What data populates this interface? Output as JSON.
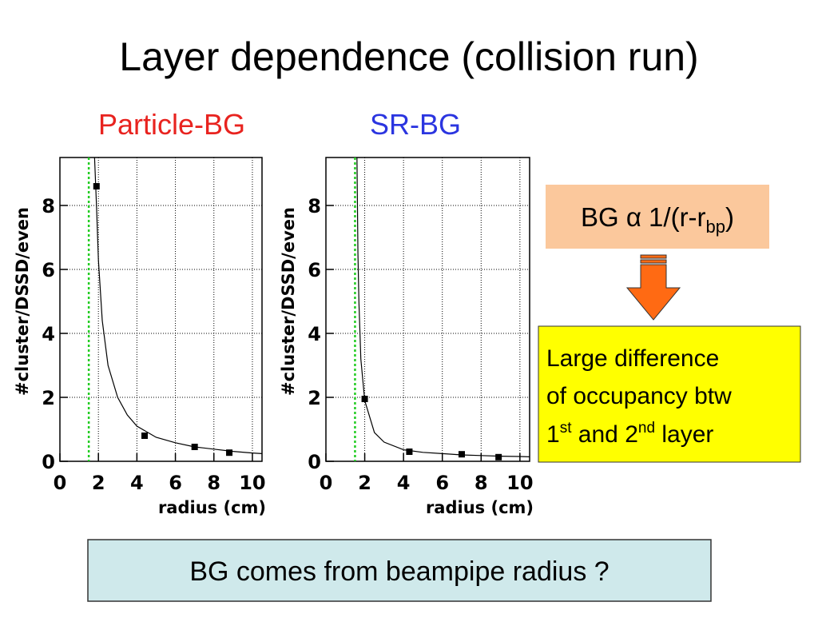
{
  "slide": {
    "title": "Layer dependence (collision run)",
    "formula": {
      "parts": [
        "BG ",
        "α",
        " 1/(r-r",
        "bp",
        ")"
      ]
    },
    "note": {
      "lines": [
        [
          "Large difference"
        ],
        [
          "of occupancy btw"
        ],
        [
          "1",
          "st",
          " and 2",
          "nd",
          " layer"
        ]
      ]
    },
    "bottom": "BG comes from beampipe radius ?"
  },
  "chart_data": [
    {
      "type": "scatter",
      "title": "Particle-BG",
      "title_color": "#e8231f",
      "x_label": "radius (cm)",
      "y_label": "#cluster/DSSD/even",
      "xlim": [
        0,
        10.5
      ],
      "ylim": [
        0,
        9.5
      ],
      "xticks": [
        0,
        2,
        4,
        6,
        8,
        10
      ],
      "yticks": [
        0,
        2,
        4,
        6,
        8
      ],
      "grid": true,
      "vline": 1.5,
      "vline_color": "#22cc22",
      "points": {
        "x": [
          1.9,
          4.4,
          7.0,
          8.8
        ],
        "values": [
          8.6,
          0.8,
          0.45,
          0.27
        ],
        "color": "#000000"
      },
      "curve": {
        "x": [
          1.8,
          1.9,
          2.0,
          2.2,
          2.5,
          3.0,
          3.5,
          4.0,
          5.0,
          6.0,
          7.0,
          8.0,
          9.0,
          10.0,
          10.5
        ],
        "values": [
          9.5,
          8.0,
          6.3,
          4.4,
          3.0,
          2.0,
          1.45,
          1.1,
          0.75,
          0.58,
          0.45,
          0.38,
          0.31,
          0.26,
          0.24
        ],
        "color": "#000000"
      }
    },
    {
      "type": "scatter",
      "title": "SR-BG",
      "title_color": "#2b35e0",
      "x_label": "radius (cm)",
      "y_label": "#cluster/DSSD/even",
      "xlim": [
        0,
        10.5
      ],
      "ylim": [
        0,
        9.5
      ],
      "xticks": [
        0,
        2,
        4,
        6,
        8,
        10
      ],
      "yticks": [
        0,
        2,
        4,
        6,
        8
      ],
      "grid": true,
      "vline": 1.5,
      "vline_color": "#22cc22",
      "points": {
        "x": [
          2.0,
          4.3,
          7.0,
          8.9
        ],
        "values": [
          1.95,
          0.3,
          0.22,
          0.13
        ],
        "color": "#000000"
      },
      "curve": {
        "x": [
          1.6,
          1.65,
          1.7,
          1.8,
          2.0,
          2.5,
          3.0,
          4.0,
          5.0,
          6.0,
          7.0,
          8.0,
          9.0,
          10.0,
          10.5
        ],
        "values": [
          9.5,
          6.5,
          5.0,
          3.2,
          1.9,
          0.9,
          0.6,
          0.36,
          0.28,
          0.24,
          0.2,
          0.18,
          0.16,
          0.15,
          0.14
        ],
        "color": "#000000"
      }
    }
  ]
}
